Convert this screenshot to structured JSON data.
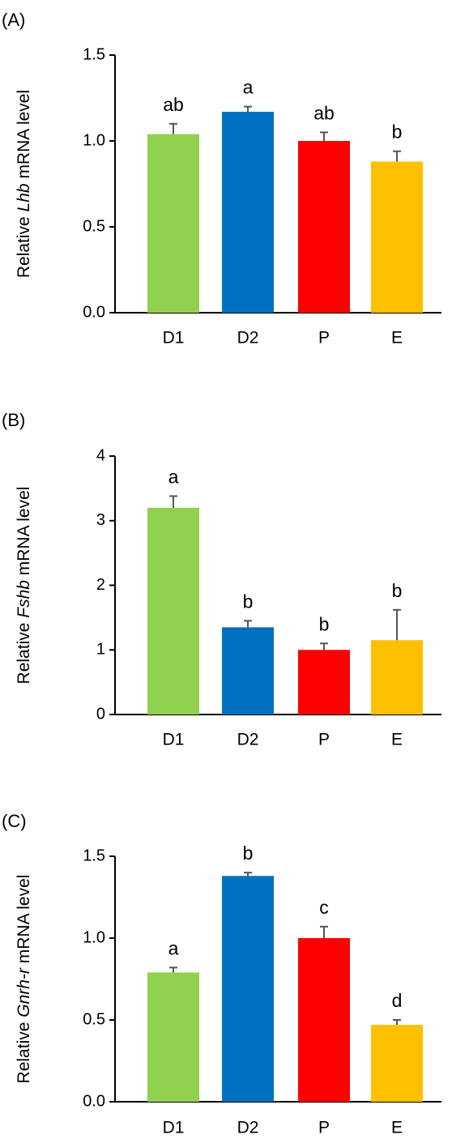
{
  "chart_data": [
    {
      "type": "bar",
      "panel_label": "(A)",
      "ylabel_prefix": "Relative ",
      "ylabel_gene": "Lhb",
      "ylabel_suffix": " mRNA  level",
      "categories": [
        "D1",
        "D2",
        "P",
        "E"
      ],
      "values": [
        1.04,
        1.17,
        1.0,
        0.88
      ],
      "errors": [
        0.06,
        0.03,
        0.05,
        0.06
      ],
      "significance": [
        "ab",
        "a",
        "ab",
        "b"
      ],
      "colors": [
        "#92D050",
        "#0070C0",
        "#FF0000",
        "#FFC000"
      ],
      "ylim": [
        0,
        1.5
      ],
      "yticks": [
        0,
        0.5,
        1.0,
        1.5
      ],
      "ytick_labels": [
        "0.0",
        "0.5",
        "1.0",
        "1.5"
      ],
      "grid": false,
      "legend": "none"
    },
    {
      "type": "bar",
      "panel_label": "(B)",
      "ylabel_prefix": "Relative ",
      "ylabel_gene": "Fshb",
      "ylabel_suffix": " mRNA  level",
      "categories": [
        "D1",
        "D2",
        "P",
        "E"
      ],
      "values": [
        3.2,
        1.35,
        1.0,
        1.15
      ],
      "errors": [
        0.18,
        0.1,
        0.1,
        0.47
      ],
      "significance": [
        "a",
        "b",
        "b",
        "b"
      ],
      "colors": [
        "#92D050",
        "#0070C0",
        "#FF0000",
        "#FFC000"
      ],
      "ylim": [
        0,
        4
      ],
      "yticks": [
        0,
        1,
        2,
        3,
        4
      ],
      "ytick_labels": [
        "0",
        "1",
        "2",
        "3",
        "4"
      ],
      "grid": false,
      "legend": "none"
    },
    {
      "type": "bar",
      "panel_label": "(C)",
      "ylabel_prefix": "Relative ",
      "ylabel_gene": "Gnrh-r",
      "ylabel_suffix": " mRNA level",
      "categories": [
        "D1",
        "D2",
        "P",
        "E"
      ],
      "values": [
        0.79,
        1.38,
        1.0,
        0.47
      ],
      "errors": [
        0.03,
        0.02,
        0.07,
        0.03
      ],
      "significance": [
        "a",
        "b",
        "c",
        "d"
      ],
      "colors": [
        "#92D050",
        "#0070C0",
        "#FF0000",
        "#FFC000"
      ],
      "ylim": [
        0,
        1.5
      ],
      "yticks": [
        0,
        0.5,
        1.0,
        1.5
      ],
      "ytick_labels": [
        "0.0",
        "0.5",
        "1.0",
        "1.5"
      ],
      "grid": false,
      "legend": "none"
    }
  ]
}
